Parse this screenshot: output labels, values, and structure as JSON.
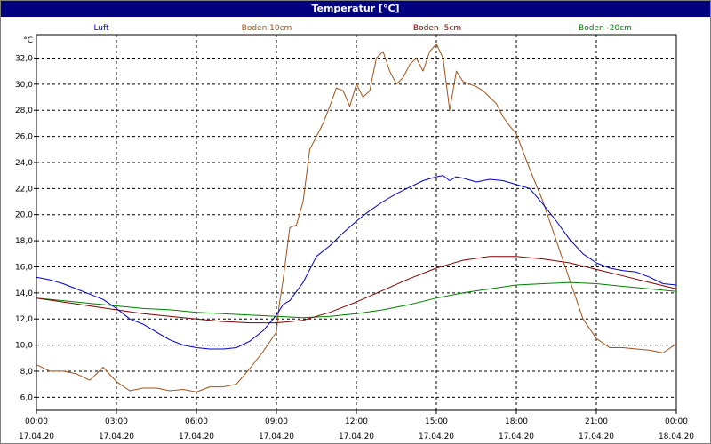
{
  "window": {
    "title": "Temperatur [°C]"
  },
  "chart_data": {
    "type": "line",
    "title": "Temperatur [°C]",
    "ylabel": "°C",
    "xlabel": "",
    "ylim": [
      5.0,
      33.8
    ],
    "xlim": [
      0,
      24
    ],
    "grid": true,
    "legend_placement": "top",
    "y_ticks": [
      "6,0",
      "8,0",
      "10,0",
      "12,0",
      "14,0",
      "16,0",
      "18,0",
      "20,0",
      "22,0",
      "24,0",
      "26,0",
      "28,0",
      "30,0",
      "32,0"
    ],
    "y_tick_values": [
      6,
      8,
      10,
      12,
      14,
      16,
      18,
      20,
      22,
      24,
      26,
      28,
      30,
      32
    ],
    "x_ticks": [
      {
        "time": "00:00",
        "date": "17.04.20",
        "hour": 0
      },
      {
        "time": "03:00",
        "date": "17.04.20",
        "hour": 3
      },
      {
        "time": "06:00",
        "date": "17.04.20",
        "hour": 6
      },
      {
        "time": "09:00",
        "date": "17.04.20",
        "hour": 9
      },
      {
        "time": "12:00",
        "date": "17.04.20",
        "hour": 12
      },
      {
        "time": "15:00",
        "date": "17.04.20",
        "hour": 15
      },
      {
        "time": "18:00",
        "date": "17.04.20",
        "hour": 18
      },
      {
        "time": "21:00",
        "date": "17.04.20",
        "hour": 21
      },
      {
        "time": "00:00",
        "date": "18.04.20",
        "hour": 24
      }
    ],
    "series": [
      {
        "name": "Luft",
        "color": "#0000cc",
        "x": [
          0,
          0.5,
          1,
          1.5,
          2,
          2.5,
          3,
          3.5,
          4,
          4.5,
          5,
          5.5,
          6,
          6.5,
          7,
          7.5,
          8,
          8.5,
          9,
          9.25,
          9.5,
          10,
          10.5,
          11,
          11.5,
          12,
          12.5,
          13,
          13.5,
          14,
          14.5,
          15,
          15.25,
          15.5,
          15.75,
          16,
          16.5,
          17,
          17.5,
          18,
          18.5,
          19,
          19.5,
          20,
          20.5,
          21,
          21.5,
          22,
          22.5,
          23,
          23.5,
          24
        ],
        "y": [
          15.2,
          15,
          14.7,
          14.3,
          13.9,
          13.5,
          12.8,
          12,
          11.6,
          11,
          10.4,
          10,
          9.8,
          9.7,
          9.7,
          9.8,
          10.3,
          11.1,
          12.3,
          13.1,
          13.4,
          14.8,
          16.8,
          17.6,
          18.6,
          19.5,
          20.3,
          21,
          21.6,
          22.1,
          22.6,
          22.9,
          23.0,
          22.6,
          22.9,
          22.8,
          22.5,
          22.7,
          22.6,
          22.3,
          22,
          20.8,
          19.5,
          18.1,
          17,
          16.3,
          15.9,
          15.7,
          15.6,
          15.2,
          14.7,
          14.6
        ]
      },
      {
        "name": "Boden 10cm",
        "color": "#a0521a",
        "x": [
          0,
          0.5,
          1,
          1.5,
          2,
          2.5,
          3,
          3.5,
          4,
          4.5,
          5,
          5.5,
          6,
          6.5,
          7,
          7.5,
          8,
          8.5,
          9,
          9.1,
          9.25,
          9.5,
          9.75,
          10,
          10.25,
          10.5,
          10.75,
          11,
          11.25,
          11.5,
          11.75,
          12,
          12.25,
          12.5,
          12.75,
          13,
          13.25,
          13.5,
          13.75,
          14,
          14.25,
          14.5,
          14.75,
          15,
          15.25,
          15.5,
          15.75,
          16,
          16.25,
          16.5,
          16.75,
          17,
          17.25,
          17.5,
          17.75,
          18,
          18.5,
          19,
          19.5,
          20,
          20.5,
          21,
          21.5,
          22,
          22.5,
          23,
          23.5,
          24
        ],
        "y": [
          8.5,
          8.0,
          8.0,
          7.8,
          7.3,
          8.3,
          7.2,
          6.5,
          6.7,
          6.7,
          6.5,
          6.6,
          6.4,
          6.8,
          6.8,
          7.0,
          8.2,
          9.5,
          11.0,
          13.0,
          15.0,
          19.0,
          19.2,
          21.0,
          25.0,
          26.0,
          27.0,
          28.3,
          29.7,
          29.5,
          28.3,
          30.0,
          29.0,
          29.5,
          32.0,
          32.5,
          31.0,
          30.0,
          30.5,
          31.5,
          32.0,
          31.0,
          32.5,
          33.1,
          32.0,
          28.0,
          31.0,
          30.2,
          30.0,
          29.8,
          29.5,
          29.0,
          28.5,
          27.5,
          26.8,
          26.2,
          23.5,
          21.0,
          18.0,
          15.0,
          12.0,
          10.5,
          9.8,
          9.8,
          9.7,
          9.6,
          9.4,
          10.1
        ]
      },
      {
        "name": "Boden -5cm",
        "color": "#800000",
        "x": [
          0,
          1,
          2,
          3,
          4,
          5,
          6,
          7,
          8,
          9,
          10,
          11,
          12,
          13,
          14,
          15,
          16,
          17,
          18,
          19,
          20,
          21,
          22,
          23,
          24
        ],
        "y": [
          13.6,
          13.3,
          13.0,
          12.7,
          12.4,
          12.2,
          12.0,
          11.8,
          11.7,
          11.7,
          11.9,
          12.5,
          13.3,
          14.2,
          15.1,
          15.9,
          16.5,
          16.8,
          16.8,
          16.6,
          16.3,
          15.8,
          15.3,
          14.8,
          14.3
        ]
      },
      {
        "name": "Boden -20cm",
        "color": "#008000",
        "x": [
          0,
          1,
          2,
          3,
          4,
          5,
          6,
          7,
          8,
          9,
          10,
          11,
          12,
          13,
          14,
          15,
          16,
          17,
          18,
          19,
          20,
          21,
          22,
          23,
          24
        ],
        "y": [
          13.6,
          13.4,
          13.2,
          13.0,
          12.8,
          12.7,
          12.5,
          12.4,
          12.3,
          12.2,
          12.1,
          12.2,
          12.4,
          12.7,
          13.1,
          13.6,
          14.0,
          14.3,
          14.6,
          14.7,
          14.8,
          14.7,
          14.5,
          14.3,
          14.1
        ]
      }
    ]
  }
}
